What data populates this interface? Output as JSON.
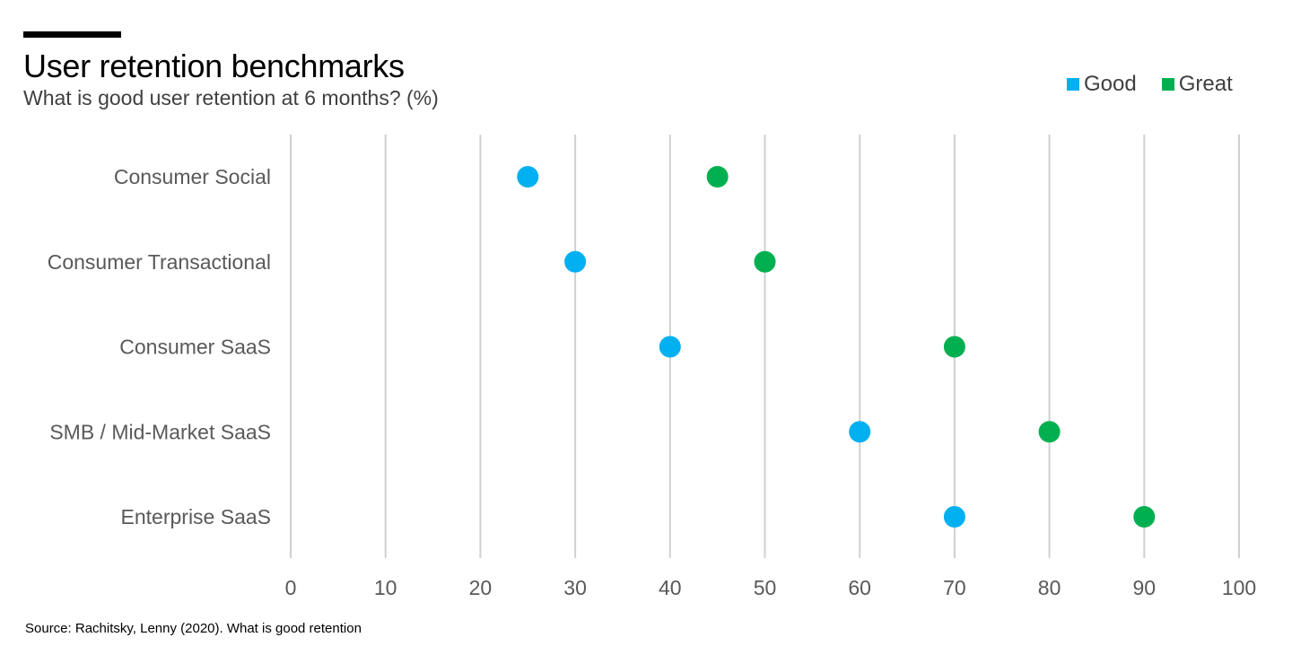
{
  "title": "User retention benchmarks",
  "subtitle": "What is good user retention at 6 months? (%)",
  "source": "Source: Rachitsky, Lenny (2020). What is good retention",
  "colors": {
    "good": "#00B0F0",
    "great": "#00B050",
    "grid": "#D0D0D0",
    "text": "#595959"
  },
  "chart_data": {
    "type": "scatter",
    "title": "User retention benchmarks",
    "subtitle": "What is good user retention at 6 months? (%)",
    "categories": [
      "Consumer Social",
      "Consumer Transactional",
      "Consumer SaaS",
      "SMB / Mid-Market SaaS",
      "Enterprise SaaS"
    ],
    "series": [
      {
        "name": "Good",
        "color": "#00B0F0",
        "values": [
          25,
          30,
          40,
          60,
          70
        ]
      },
      {
        "name": "Great",
        "color": "#00B050",
        "values": [
          45,
          50,
          70,
          80,
          90
        ]
      }
    ],
    "xlim": [
      0,
      100
    ],
    "xticks": [
      0,
      10,
      20,
      30,
      40,
      50,
      60,
      70,
      80,
      90,
      100
    ],
    "grid": "vertical",
    "legend_position": "top-right"
  }
}
